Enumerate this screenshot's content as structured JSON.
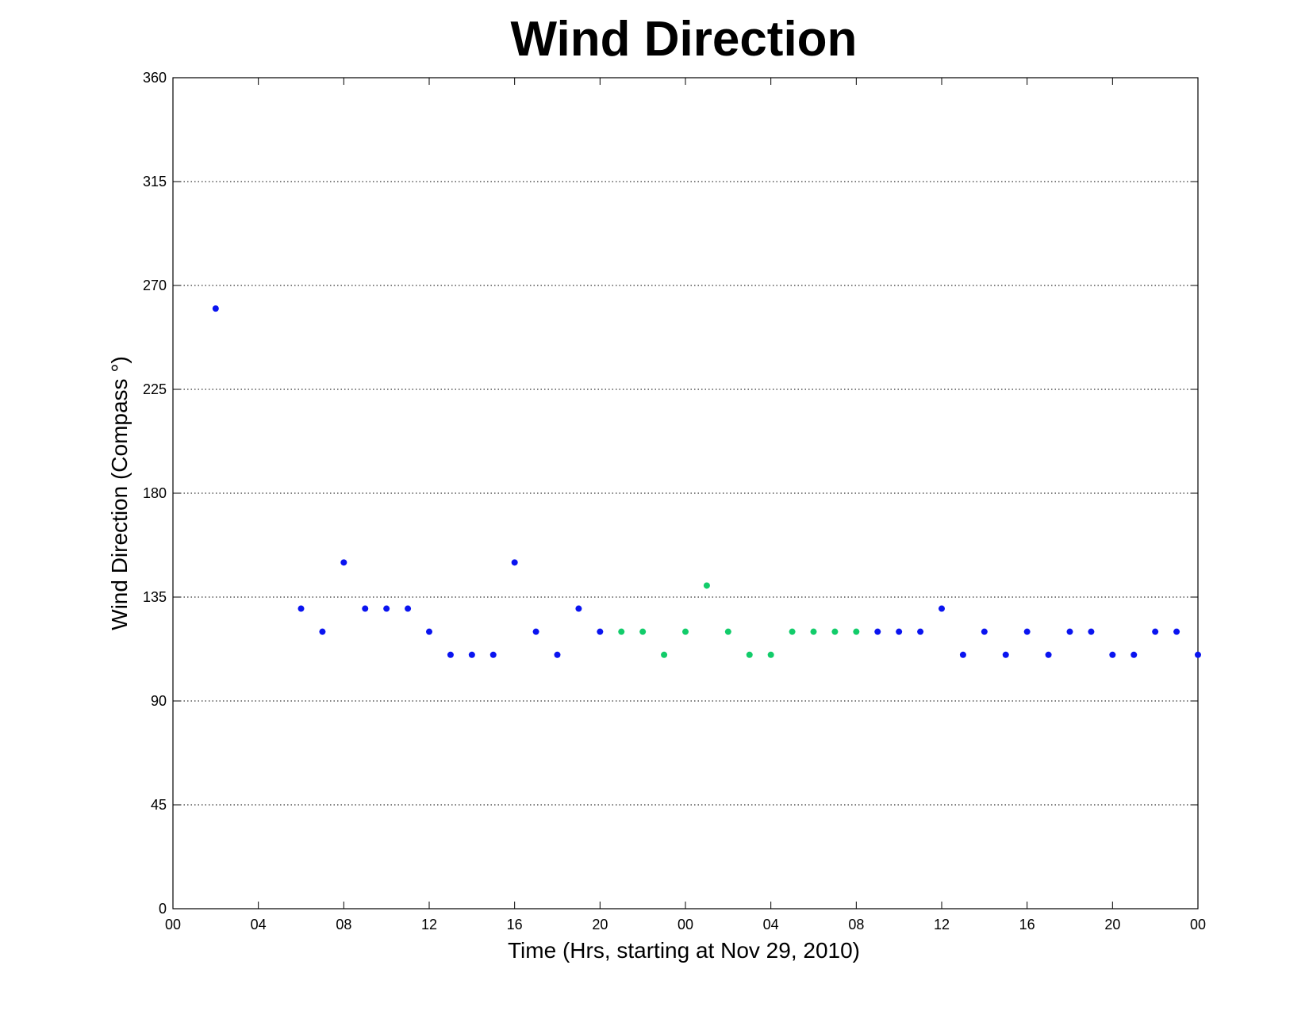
{
  "chart_data": {
    "type": "scatter",
    "title": "Wind Direction",
    "xlabel": "Time (Hrs, starting at Nov 29, 2010)",
    "ylabel": "Wind Direction (Compass  °)",
    "xlim": [
      0,
      48
    ],
    "ylim": [
      0,
      360
    ],
    "x_ticks": [
      0,
      4,
      8,
      12,
      16,
      20,
      24,
      28,
      32,
      36,
      40,
      44,
      48
    ],
    "x_tick_labels": [
      "00",
      "04",
      "08",
      "12",
      "16",
      "20",
      "00",
      "04",
      "08",
      "12",
      "16",
      "20",
      "00"
    ],
    "y_ticks": [
      0,
      45,
      90,
      135,
      180,
      225,
      270,
      315,
      360
    ],
    "y_tick_labels": [
      "0",
      "45",
      "90",
      "135",
      "180",
      "225",
      "270",
      "315",
      "360"
    ],
    "grid": "horizontal dotted",
    "colors": {
      "blue": "#0a14f0",
      "green": "#12cc6a"
    },
    "series": [
      {
        "color": "#0a14f0",
        "points": [
          [
            2,
            260
          ],
          [
            6,
            130
          ],
          [
            7,
            120
          ],
          [
            8,
            150
          ],
          [
            9,
            130
          ],
          [
            10,
            130
          ],
          [
            11,
            130
          ],
          [
            12,
            120
          ],
          [
            13,
            110
          ],
          [
            14,
            110
          ],
          [
            15,
            110
          ],
          [
            16,
            150
          ],
          [
            17,
            120
          ],
          [
            18,
            110
          ],
          [
            19,
            130
          ],
          [
            20,
            120
          ],
          [
            33,
            120
          ],
          [
            34,
            120
          ],
          [
            35,
            120
          ],
          [
            36,
            130
          ],
          [
            37,
            110
          ],
          [
            38,
            120
          ],
          [
            39,
            110
          ],
          [
            40,
            120
          ],
          [
            41,
            110
          ],
          [
            42,
            120
          ],
          [
            43,
            120
          ],
          [
            44,
            110
          ],
          [
            45,
            110
          ],
          [
            46,
            120
          ],
          [
            47,
            120
          ],
          [
            48,
            110
          ]
        ]
      },
      {
        "color": "#12cc6a",
        "points": [
          [
            21,
            120
          ],
          [
            22,
            120
          ],
          [
            23,
            110
          ],
          [
            24,
            120
          ],
          [
            25,
            140
          ],
          [
            26,
            120
          ],
          [
            27,
            110
          ],
          [
            28,
            110
          ],
          [
            29,
            120
          ],
          [
            30,
            120
          ],
          [
            31,
            120
          ],
          [
            32,
            120
          ]
        ]
      }
    ]
  }
}
